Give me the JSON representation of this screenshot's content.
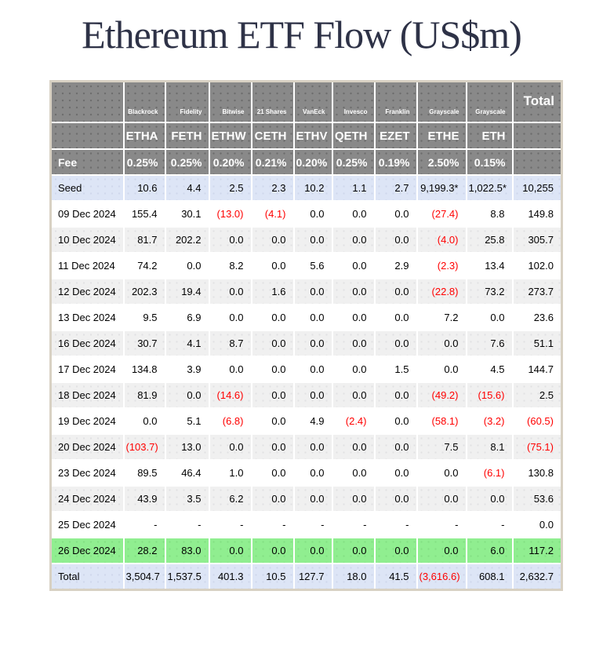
{
  "colors": {
    "header_bg": "#898989",
    "header_text": "#ffffff",
    "seed_total_row_bg": "#dde5f6",
    "highlight_row_bg": "#90ee90",
    "stripe_row_bg": "#f0f0f0",
    "negative_text": "#ff0000",
    "title_text": "#2e3247",
    "table_border": "#d8d1c3"
  },
  "chart_data": {
    "type": "table",
    "title": "Ethereum ETF Flow (US$m)",
    "fee_row_label": "Fee",
    "total_column_label": "Total",
    "negative_format": "parentheses, red text",
    "funds": [
      {
        "issuer": "Blackrock",
        "ticker": "ETHA",
        "fee": "0.25%"
      },
      {
        "issuer": "Fidelity",
        "ticker": "FETH",
        "fee": "0.25%"
      },
      {
        "issuer": "Bitwise",
        "ticker": "ETHW",
        "fee": "0.20%"
      },
      {
        "issuer": "21 Shares",
        "ticker": "CETH",
        "fee": "0.21%"
      },
      {
        "issuer": "VanEck",
        "ticker": "ETHV",
        "fee": "0.20%"
      },
      {
        "issuer": "Invesco",
        "ticker": "QETH",
        "fee": "0.25%"
      },
      {
        "issuer": "Franklin",
        "ticker": "EZET",
        "fee": "0.19%"
      },
      {
        "issuer": "Grayscale",
        "ticker": "ETHE",
        "fee": "2.50%"
      },
      {
        "issuer": "Grayscale",
        "ticker": "ETH",
        "fee": "0.15%"
      }
    ],
    "rows": [
      {
        "label": "Seed",
        "style": "seed",
        "values": [
          "10.6",
          "4.4",
          "2.5",
          "2.3",
          "10.2",
          "1.1",
          "2.7",
          "9,199.3*",
          "1,022.5*",
          "10,255"
        ]
      },
      {
        "label": "09 Dec 2024",
        "style": "plain",
        "values": [
          "155.4",
          "30.1",
          "(13.0)",
          "(4.1)",
          "0.0",
          "0.0",
          "0.0",
          "(27.4)",
          "8.8",
          "149.8"
        ]
      },
      {
        "label": "10 Dec 2024",
        "style": "stripe",
        "values": [
          "81.7",
          "202.2",
          "0.0",
          "0.0",
          "0.0",
          "0.0",
          "0.0",
          "(4.0)",
          "25.8",
          "305.7"
        ]
      },
      {
        "label": "11 Dec 2024",
        "style": "plain",
        "values": [
          "74.2",
          "0.0",
          "8.2",
          "0.0",
          "5.6",
          "0.0",
          "2.9",
          "(2.3)",
          "13.4",
          "102.0"
        ]
      },
      {
        "label": "12 Dec 2024",
        "style": "stripe",
        "values": [
          "202.3",
          "19.4",
          "0.0",
          "1.6",
          "0.0",
          "0.0",
          "0.0",
          "(22.8)",
          "73.2",
          "273.7"
        ]
      },
      {
        "label": "13 Dec 2024",
        "style": "plain",
        "values": [
          "9.5",
          "6.9",
          "0.0",
          "0.0",
          "0.0",
          "0.0",
          "0.0",
          "7.2",
          "0.0",
          "23.6"
        ]
      },
      {
        "label": "16 Dec 2024",
        "style": "stripe",
        "values": [
          "30.7",
          "4.1",
          "8.7",
          "0.0",
          "0.0",
          "0.0",
          "0.0",
          "0.0",
          "7.6",
          "51.1"
        ]
      },
      {
        "label": "17 Dec 2024",
        "style": "plain",
        "values": [
          "134.8",
          "3.9",
          "0.0",
          "0.0",
          "0.0",
          "0.0",
          "1.5",
          "0.0",
          "4.5",
          "144.7"
        ]
      },
      {
        "label": "18 Dec 2024",
        "style": "stripe",
        "values": [
          "81.9",
          "0.0",
          "(14.6)",
          "0.0",
          "0.0",
          "0.0",
          "0.0",
          "(49.2)",
          "(15.6)",
          "2.5"
        ]
      },
      {
        "label": "19 Dec 2024",
        "style": "plain",
        "values": [
          "0.0",
          "5.1",
          "(6.8)",
          "0.0",
          "4.9",
          "(2.4)",
          "0.0",
          "(58.1)",
          "(3.2)",
          "(60.5)"
        ]
      },
      {
        "label": "20 Dec 2024",
        "style": "stripe",
        "values": [
          "(103.7)",
          "13.0",
          "0.0",
          "0.0",
          "0.0",
          "0.0",
          "0.0",
          "7.5",
          "8.1",
          "(75.1)"
        ]
      },
      {
        "label": "23 Dec 2024",
        "style": "plain",
        "values": [
          "89.5",
          "46.4",
          "1.0",
          "0.0",
          "0.0",
          "0.0",
          "0.0",
          "0.0",
          "(6.1)",
          "130.8"
        ]
      },
      {
        "label": "24 Dec 2024",
        "style": "stripe",
        "values": [
          "43.9",
          "3.5",
          "6.2",
          "0.0",
          "0.0",
          "0.0",
          "0.0",
          "0.0",
          "0.0",
          "53.6"
        ]
      },
      {
        "label": "25 Dec 2024",
        "style": "plain",
        "values": [
          "-",
          "-",
          "-",
          "-",
          "-",
          "-",
          "-",
          "-",
          "-",
          "0.0"
        ]
      },
      {
        "label": "26 Dec 2024",
        "style": "highlight",
        "values": [
          "28.2",
          "83.0",
          "0.0",
          "0.0",
          "0.0",
          "0.0",
          "0.0",
          "0.0",
          "6.0",
          "117.2"
        ]
      },
      {
        "label": "Total",
        "style": "total",
        "values": [
          "3,504.7",
          "1,537.5",
          "401.3",
          "10.5",
          "127.7",
          "18.0",
          "41.5",
          "(3,616.6)",
          "608.1",
          "2,632.7"
        ]
      }
    ]
  }
}
